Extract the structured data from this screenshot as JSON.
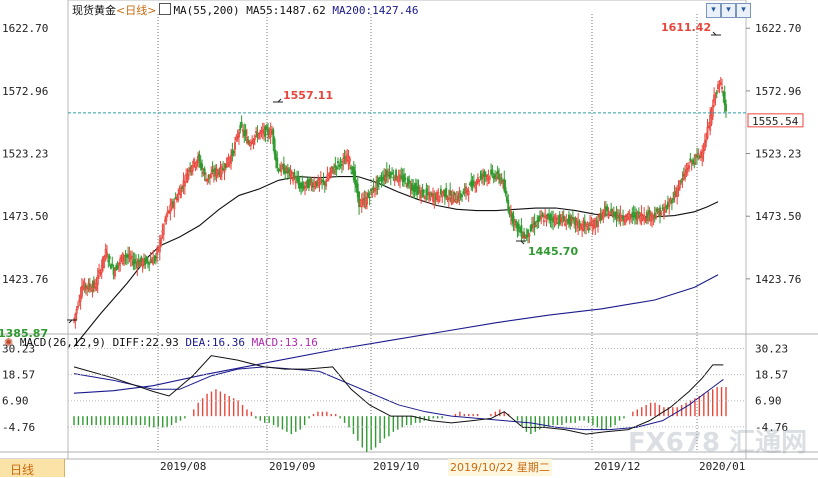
{
  "header": {
    "symbol": "现货黄金",
    "period": "<日线>",
    "ma_label": "MA(55,200)",
    "ma55_label": "MA55:1487.62",
    "ma200_label": "MA200:1427.46"
  },
  "macd_header": {
    "label": "MACD(26,12,9)",
    "diff": "DIFF:22.93",
    "dea": "DEA:16.36",
    "macd": "MACD:13.16"
  },
  "toolbar": {
    "btn1": "▾",
    "btn2": "▾",
    "btn3": "▾"
  },
  "footer": {
    "period_tab": "日线",
    "cursor_date": "2019/10/22 星期二"
  },
  "watermark": "FX678 汇通网",
  "colors": {
    "up": "#e8463c",
    "down": "#2f9a2f",
    "ma55": "#111111",
    "ma200": "#1a1a8c",
    "diff_line": "#111111",
    "dea_line": "#1a1a8c",
    "price_line": "#2aa0a6",
    "price_box": "#e8463c"
  },
  "chart_data": {
    "type": "candlestick",
    "price_axis": {
      "ticks": [
        1622.7,
        1572.96,
        1523.23,
        1473.5,
        1423.76
      ],
      "tick_labels": [
        "1622.70",
        "1572.96",
        "1523.23",
        "1473.50",
        "1423.76"
      ],
      "range": [
        1380,
        1634
      ]
    },
    "x_axis": {
      "tick_labels": [
        "2019/08",
        "2019/09",
        "2019/10",
        "2019/12",
        "2020/01"
      ]
    },
    "last_price": "1555.54",
    "annotations": [
      {
        "label": "1385.87",
        "kind": "low"
      },
      {
        "label": "1557.11",
        "kind": "high"
      },
      {
        "label": "1445.70",
        "kind": "low"
      },
      {
        "label": "1611.42",
        "kind": "high"
      }
    ],
    "close_path": [
      [
        0,
        1391
      ],
      [
        6,
        1418
      ],
      [
        16,
        1418
      ],
      [
        24,
        1445
      ],
      [
        30,
        1430
      ],
      [
        38,
        1443
      ],
      [
        46,
        1437
      ],
      [
        54,
        1437
      ],
      [
        62,
        1440
      ],
      [
        70,
        1474
      ],
      [
        80,
        1493
      ],
      [
        88,
        1513
      ],
      [
        94,
        1519
      ],
      [
        100,
        1503
      ],
      [
        106,
        1508
      ],
      [
        112,
        1510
      ],
      [
        120,
        1523
      ],
      [
        126,
        1545
      ],
      [
        132,
        1532
      ],
      [
        138,
        1538
      ],
      [
        144,
        1540
      ],
      [
        150,
        1540
      ],
      [
        154,
        1512
      ],
      [
        160,
        1510
      ],
      [
        166,
        1505
      ],
      [
        172,
        1496
      ],
      [
        178,
        1499
      ],
      [
        184,
        1500
      ],
      [
        190,
        1500
      ],
      [
        196,
        1511
      ],
      [
        202,
        1516
      ],
      [
        208,
        1520
      ],
      [
        212,
        1505
      ],
      [
        216,
        1484
      ],
      [
        220,
        1485
      ],
      [
        226,
        1494
      ],
      [
        232,
        1502
      ],
      [
        238,
        1508
      ],
      [
        244,
        1505
      ],
      [
        250,
        1502
      ],
      [
        256,
        1497
      ],
      [
        262,
        1492
      ],
      [
        268,
        1490
      ],
      [
        274,
        1489
      ],
      [
        280,
        1492
      ],
      [
        286,
        1488
      ],
      [
        292,
        1489
      ],
      [
        298,
        1495
      ],
      [
        304,
        1501
      ],
      [
        310,
        1506
      ],
      [
        318,
        1506
      ],
      [
        324,
        1503
      ],
      [
        330,
        1477
      ],
      [
        336,
        1464
      ],
      [
        342,
        1457
      ],
      [
        348,
        1466
      ],
      [
        354,
        1472
      ],
      [
        360,
        1472
      ],
      [
        366,
        1471
      ],
      [
        372,
        1470
      ],
      [
        378,
        1469
      ],
      [
        384,
        1466
      ],
      [
        390,
        1465
      ],
      [
        396,
        1469
      ],
      [
        402,
        1477
      ],
      [
        408,
        1476
      ],
      [
        414,
        1473
      ],
      [
        420,
        1473
      ],
      [
        426,
        1474
      ],
      [
        432,
        1474
      ],
      [
        438,
        1474
      ],
      [
        444,
        1476
      ],
      [
        450,
        1481
      ],
      [
        456,
        1493
      ],
      [
        462,
        1505
      ],
      [
        466,
        1515
      ],
      [
        470,
        1518
      ],
      [
        474,
        1522
      ],
      [
        478,
        1531
      ],
      [
        482,
        1551
      ],
      [
        486,
        1572
      ],
      [
        490,
        1578
      ],
      [
        492,
        1572
      ],
      [
        494,
        1557
      ]
    ],
    "ma55_path": [
      [
        0,
        1370
      ],
      [
        20,
        1396
      ],
      [
        40,
        1420
      ],
      [
        55,
        1440
      ],
      [
        65,
        1450
      ],
      [
        80,
        1457
      ],
      [
        95,
        1466
      ],
      [
        110,
        1479
      ],
      [
        125,
        1490
      ],
      [
        140,
        1495
      ],
      [
        155,
        1502
      ],
      [
        170,
        1505
      ],
      [
        185,
        1504
      ],
      [
        200,
        1505
      ],
      [
        215,
        1505
      ],
      [
        230,
        1500
      ],
      [
        245,
        1493
      ],
      [
        260,
        1487
      ],
      [
        275,
        1482
      ],
      [
        290,
        1479
      ],
      [
        305,
        1478
      ],
      [
        320,
        1478
      ],
      [
        335,
        1479
      ],
      [
        350,
        1480
      ],
      [
        365,
        1480
      ],
      [
        380,
        1478
      ],
      [
        395,
        1475
      ],
      [
        410,
        1474
      ],
      [
        425,
        1473
      ],
      [
        440,
        1473
      ],
      [
        455,
        1474
      ],
      [
        470,
        1477
      ],
      [
        480,
        1481
      ],
      [
        488,
        1485
      ]
    ],
    "ma200_path": [
      [
        0,
        1333
      ],
      [
        30,
        1335
      ],
      [
        60,
        1339
      ],
      [
        100,
        1348
      ],
      [
        150,
        1358
      ],
      [
        200,
        1368
      ],
      [
        240,
        1375
      ],
      [
        280,
        1382
      ],
      [
        320,
        1389
      ],
      [
        360,
        1395
      ],
      [
        400,
        1400
      ],
      [
        440,
        1407
      ],
      [
        470,
        1417
      ],
      [
        488,
        1427
      ]
    ],
    "macd_axis": {
      "ticks": [
        30.23,
        18.57,
        6.9,
        -4.76
      ],
      "tick_labels": [
        "30.23",
        "18.57",
        "6.90",
        "-4.76"
      ],
      "range": [
        -16,
        34
      ]
    },
    "diff_path": [
      [
        0,
        22
      ],
      [
        30,
        17
      ],
      [
        60,
        11
      ],
      [
        72,
        9
      ],
      [
        90,
        18
      ],
      [
        104,
        27
      ],
      [
        124,
        25
      ],
      [
        144,
        22
      ],
      [
        160,
        21
      ],
      [
        176,
        21
      ],
      [
        196,
        22
      ],
      [
        210,
        12
      ],
      [
        224,
        5
      ],
      [
        240,
        0
      ],
      [
        256,
        0
      ],
      [
        270,
        -2
      ],
      [
        286,
        -3
      ],
      [
        302,
        -2
      ],
      [
        316,
        -1
      ],
      [
        326,
        2
      ],
      [
        340,
        -5
      ],
      [
        356,
        -5
      ],
      [
        372,
        -6
      ],
      [
        388,
        -8
      ],
      [
        402,
        -7
      ],
      [
        420,
        -6
      ],
      [
        436,
        -2
      ],
      [
        452,
        4
      ],
      [
        466,
        11
      ],
      [
        476,
        17
      ],
      [
        484,
        22.9
      ],
      [
        492,
        22.9
      ]
    ],
    "dea_path": [
      [
        0,
        19
      ],
      [
        30,
        16
      ],
      [
        60,
        12
      ],
      [
        80,
        12
      ],
      [
        104,
        18
      ],
      [
        124,
        21
      ],
      [
        144,
        22
      ],
      [
        166,
        21
      ],
      [
        186,
        20
      ],
      [
        206,
        15
      ],
      [
        226,
        10
      ],
      [
        246,
        5
      ],
      [
        266,
        2
      ],
      [
        286,
        0
      ],
      [
        306,
        -1
      ],
      [
        326,
        -2
      ],
      [
        346,
        -3
      ],
      [
        366,
        -5
      ],
      [
        386,
        -6
      ],
      [
        406,
        -6
      ],
      [
        426,
        -5
      ],
      [
        446,
        -2
      ],
      [
        466,
        5
      ],
      [
        482,
        12
      ],
      [
        492,
        16.4
      ]
    ],
    "macd_bars": [
      -4,
      -4,
      -4,
      -4,
      -4,
      -4,
      -4,
      -4,
      -4,
      -4,
      -4,
      -4,
      -4,
      -4,
      -4,
      -4,
      -4,
      -5,
      -5,
      -5,
      -5,
      -5,
      -4,
      -3,
      -2,
      -1,
      0,
      3,
      6,
      8,
      10,
      11,
      12,
      11,
      10,
      9,
      8,
      7,
      5,
      3,
      2,
      -1,
      -2,
      -3,
      -3,
      -4,
      -5,
      -6,
      -7,
      -8,
      -7,
      -6,
      -4,
      -1,
      1,
      2,
      2,
      2,
      1,
      1,
      -1,
      -3,
      -5,
      -8,
      -11,
      -14,
      -16,
      -15,
      -14,
      -12,
      -10,
      -9,
      -7,
      -6,
      -5,
      -4,
      -4,
      -3,
      -3,
      -2,
      -2,
      -1,
      -1,
      -1,
      0,
      0,
      1,
      2,
      1,
      1,
      1,
      1,
      0,
      0,
      1,
      2,
      3,
      2,
      1,
      0,
      -2,
      -5,
      -7,
      -8,
      -7,
      -6,
      -5,
      -5,
      -4,
      -4,
      -4,
      -3,
      -3,
      -3,
      -2,
      -2,
      -3,
      -4,
      -5,
      -6,
      -6,
      -5,
      -4,
      -2,
      -1,
      0,
      2,
      3,
      4,
      5,
      6,
      6,
      5,
      4,
      4,
      4,
      4,
      5,
      6,
      7,
      8,
      9,
      10,
      11,
      12,
      13,
      13,
      13
    ]
  }
}
